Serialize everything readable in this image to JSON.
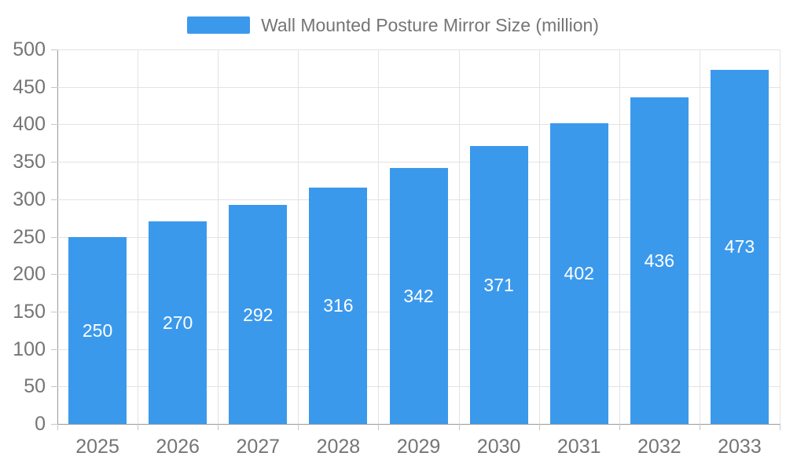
{
  "chart_data": {
    "type": "bar",
    "title": "Wall Mounted Posture Mirror Size (million)",
    "categories": [
      "2025",
      "2026",
      "2027",
      "2028",
      "2029",
      "2030",
      "2031",
      "2032",
      "2033"
    ],
    "values": [
      250,
      270,
      292,
      316,
      342,
      371,
      402,
      436,
      473
    ],
    "series": [
      {
        "name": "Wall Mounted Posture Mirror Size (million)",
        "values": [
          250,
          270,
          292,
          316,
          342,
          371,
          402,
          436,
          473
        ]
      }
    ],
    "xlabel": "",
    "ylabel": "",
    "ylim": [
      0,
      500
    ],
    "ytick_step": 50,
    "grid": true,
    "legend_position": "top-center",
    "value_labels": "inside-center",
    "colors": {
      "bar": "#3B99EC",
      "value_label": "#FFFFFF",
      "axis_text": "#757575",
      "grid_line": "#E3E3E3",
      "axis_line": "#999999",
      "tick_line": "#C6C6C6",
      "background": "#FFFFFF"
    }
  },
  "legend": {
    "label": "Wall Mounted Posture Mirror Size (million)"
  }
}
